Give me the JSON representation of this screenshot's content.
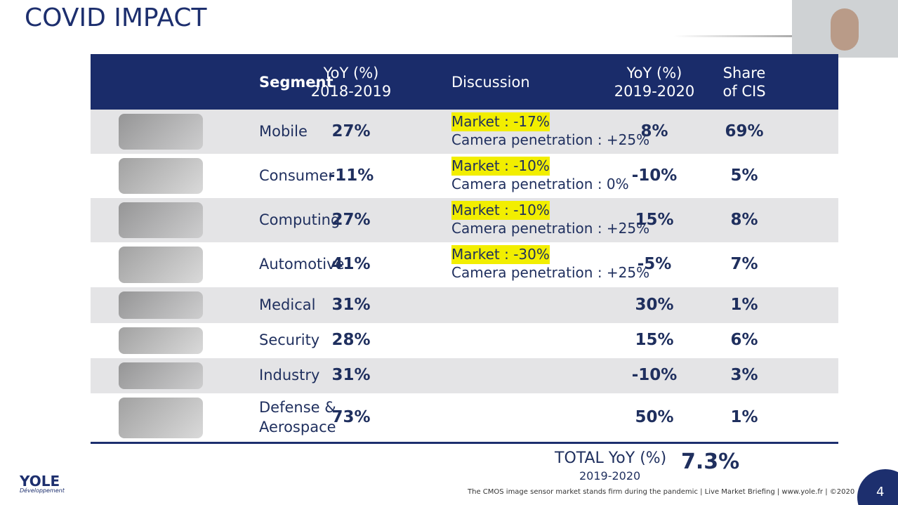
{
  "header": {
    "title": "COVID IMPACT"
  },
  "table": {
    "columns": {
      "segment": [
        "Segment"
      ],
      "yoy_2018_2019": [
        "YoY (%)",
        "2018-2019"
      ],
      "discussion": [
        "Discussion"
      ],
      "yoy_2019_2020": [
        "YoY (%)",
        "2019-2020"
      ],
      "share": [
        "Share",
        "of CIS"
      ]
    },
    "rows": [
      {
        "segment": [
          "Mobile"
        ],
        "yoy_2018_2019": "27%",
        "discussion": [
          "Market : -17%",
          "Camera penetration : +25%"
        ],
        "yoy_2019_2020": "8%",
        "share": "69%"
      },
      {
        "segment": [
          "Consumer"
        ],
        "yoy_2018_2019": "-11%",
        "discussion": [
          "Market : -10%",
          "Camera penetration : 0%"
        ],
        "yoy_2019_2020": "-10%",
        "share": "5%"
      },
      {
        "segment": [
          "Computing"
        ],
        "yoy_2018_2019": "27%",
        "discussion": [
          "Market : -10%",
          "Camera penetration : +25%"
        ],
        "yoy_2019_2020": "15%",
        "share": "8%"
      },
      {
        "segment": [
          "Automotive"
        ],
        "yoy_2018_2019": "41%",
        "discussion": [
          "Market : -30%",
          "Camera penetration : +25%"
        ],
        "yoy_2019_2020": "-5%",
        "share": "7%"
      },
      {
        "segment": [
          "Medical"
        ],
        "yoy_2018_2019": "31%",
        "discussion": [],
        "yoy_2019_2020": "30%",
        "share": "1%"
      },
      {
        "segment": [
          "Security"
        ],
        "yoy_2018_2019": "28%",
        "discussion": [],
        "yoy_2019_2020": "15%",
        "share": "6%"
      },
      {
        "segment": [
          "Industry"
        ],
        "yoy_2018_2019": "31%",
        "discussion": [],
        "yoy_2019_2020": "-10%",
        "share": "3%"
      },
      {
        "segment": [
          "Defense &",
          "Aerospace"
        ],
        "yoy_2018_2019": "73%",
        "discussion": [],
        "yoy_2019_2020": "50%",
        "share": "1%"
      }
    ],
    "total": {
      "label": "TOTAL YoY (%)",
      "period": "2019-2020",
      "value": "7.3%"
    }
  },
  "footer": {
    "logo": "YOLE",
    "logo_sub": "Développement",
    "caption": "The CMOS image sensor market stands firm during the pandemic | Live Market Briefing | www.yole.fr | ©2020",
    "page": "4"
  }
}
